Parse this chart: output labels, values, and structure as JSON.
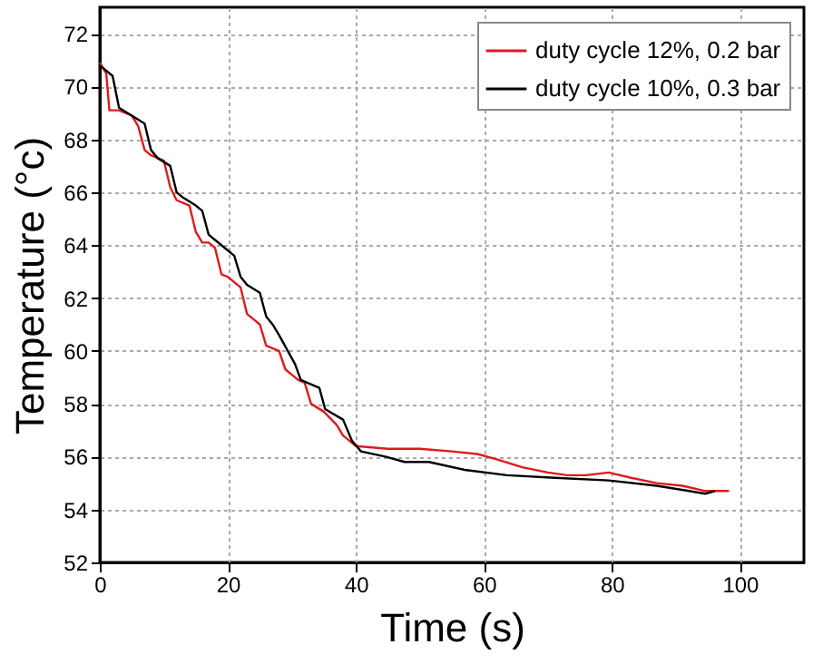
{
  "chart_data": {
    "type": "line",
    "xlabel": "Time (s)",
    "ylabel": "Temperature (°c)",
    "xlim": [
      0,
      110
    ],
    "ylim": [
      52,
      73
    ],
    "xticks": [
      0,
      20,
      40,
      60,
      80,
      100
    ],
    "yticks": [
      52,
      54,
      56,
      58,
      60,
      62,
      64,
      66,
      68,
      70,
      72
    ],
    "grid": true,
    "legend": "top right",
    "marker": "none",
    "line_style": "solid",
    "series": [
      {
        "name": "duty cycle 12%, 0.2 bar",
        "color": "#e0191e",
        "x": [
          0,
          1,
          1.5,
          3,
          5,
          6,
          7,
          8,
          10,
          11,
          12,
          13,
          14,
          15,
          16,
          17,
          18,
          19,
          20,
          21,
          22,
          23,
          24,
          25,
          26,
          28,
          29,
          30,
          31,
          32,
          33,
          35,
          37,
          38,
          39,
          40,
          45,
          50,
          55,
          59,
          62,
          66,
          70,
          73,
          76,
          79.5,
          83,
          87,
          91,
          94.6,
          98.3
        ],
        "values": [
          70.9,
          70.5,
          69.1,
          69.1,
          68.9,
          68.5,
          67.6,
          67.4,
          67.2,
          66.2,
          65.7,
          65.6,
          65.5,
          64.5,
          64.1,
          64.1,
          63.9,
          62.9,
          62.8,
          62.6,
          62.4,
          61.4,
          61.2,
          61.0,
          60.2,
          60.0,
          59.3,
          59.1,
          58.9,
          58.8,
          58.0,
          57.7,
          57.2,
          56.8,
          56.6,
          56.4,
          56.3,
          56.3,
          56.2,
          56.1,
          55.9,
          55.6,
          55.4,
          55.3,
          55.3,
          55.4,
          55.2,
          55.0,
          54.9,
          54.7,
          54.7
        ]
      },
      {
        "name": "duty cycle 10%, 0.3 bar",
        "color": "#000000",
        "x": [
          0,
          1,
          2,
          3,
          5,
          7,
          8,
          9,
          11,
          12,
          13,
          15,
          16,
          17,
          18,
          19,
          21,
          22,
          23,
          25,
          26,
          27,
          28,
          30.5,
          31.4,
          34.3,
          35.2,
          38,
          39.4,
          40.8,
          44.6,
          47.6,
          51.4,
          57,
          63.6,
          71.1,
          79.5,
          87,
          94.6,
          96.1
        ],
        "values": [
          70.8,
          70.6,
          70.4,
          69.2,
          68.9,
          68.6,
          67.6,
          67.3,
          67.0,
          66.0,
          65.8,
          65.5,
          65.3,
          64.4,
          64.2,
          64.0,
          63.6,
          62.8,
          62.5,
          62.2,
          61.3,
          61.0,
          60.6,
          59.5,
          58.9,
          58.6,
          57.8,
          57.4,
          56.6,
          56.2,
          56.0,
          55.8,
          55.8,
          55.5,
          55.3,
          55.2,
          55.1,
          54.9,
          54.6,
          54.7
        ]
      }
    ]
  }
}
